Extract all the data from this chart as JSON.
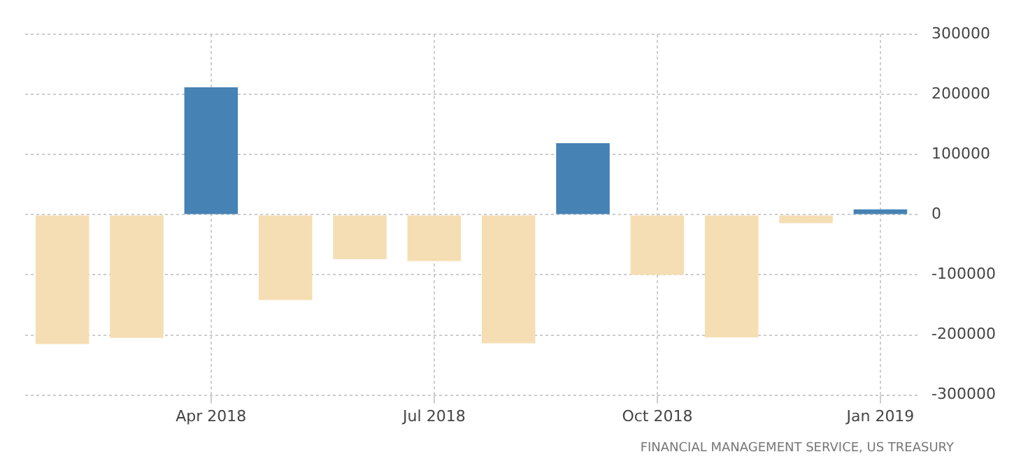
{
  "chart_data": {
    "type": "bar",
    "categories": [
      null,
      null,
      "Apr 2018",
      null,
      null,
      "Jul 2018",
      null,
      null,
      "Oct 2018",
      null,
      null,
      "Jan 2019"
    ],
    "values": [
      -215000,
      -205000,
      212000,
      -142000,
      -74000,
      -77000,
      -214000,
      119000,
      -100000,
      -204000,
      -14000,
      9000
    ],
    "colors": [
      "#f5deb3",
      "#f5deb3",
      "#4682b4",
      "#f5deb3",
      "#f5deb3",
      "#f5deb3",
      "#f5deb3",
      "#4682b4",
      "#f5deb3",
      "#f5deb3",
      "#f5deb3",
      "#4682b4"
    ],
    "ylim": [
      -300000,
      300000
    ],
    "yticks": [
      -300000,
      -200000,
      -100000,
      0,
      100000,
      200000,
      300000
    ],
    "grid": true,
    "legend": false,
    "annotations": [
      "FINANCIAL MANAGEMENT SERVICE, US TREASURY"
    ]
  }
}
